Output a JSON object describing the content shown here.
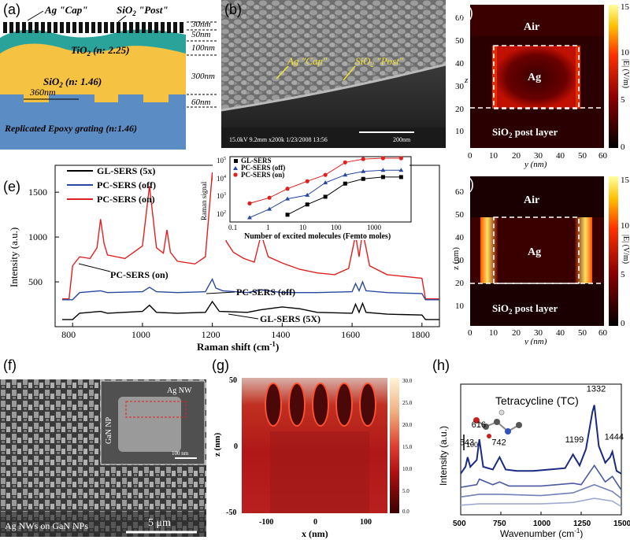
{
  "panels": {
    "a": {
      "label": "(a)",
      "cap": "Ag \"Cap\"",
      "post": "SiO",
      "post_sub": "2",
      "post_suffix": " \"Post\"",
      "tio2": "TiO",
      "tio2_suffix": " (n: 2.25)",
      "sio2": "SiO",
      "sio2_suffix": " (n: 1.46)",
      "period": "360nm",
      "epoxy": "Replicated Epoxy grating (n:1.46)",
      "dims": [
        "30nm",
        "50nm",
        "100nm",
        "300nm",
        "60nm"
      ]
    },
    "b": {
      "label": "(b)",
      "cap": "Ag \"Cap\"",
      "post": "SiO",
      "post_suffix": " \"Post\"",
      "meta": "15.0kV 9.2mm x200k 1/23/2008 13:56",
      "scale": "200nm"
    },
    "c": {
      "label": "(c)",
      "air": "Air",
      "ag": "Ag",
      "post_layer": "SiO",
      "post_layer_suffix": " post layer",
      "ylabel": "z",
      "xlabel": "y (nm)",
      "cbar_label": "|E| (V/m)",
      "xticks": [
        "0",
        "10",
        "20",
        "30",
        "40",
        "50",
        "60"
      ],
      "yticks": [
        "10",
        "20",
        "30",
        "40",
        "50",
        "60"
      ],
      "cbar_ticks": [
        "0",
        "5",
        "10",
        "15"
      ]
    },
    "d": {
      "label": "(d)",
      "air": "Air",
      "ag": "Ag",
      "post_layer": "SiO",
      "post_layer_suffix": " post layer",
      "ylabel": "z (nm)",
      "xlabel": "y (nm)",
      "cbar_label": "|E| (V/m)",
      "xticks": [
        "0",
        "10",
        "20",
        "30",
        "40",
        "50",
        "60"
      ],
      "yticks": [
        "10",
        "20",
        "30",
        "40",
        "50",
        "60"
      ],
      "cbar_ticks": [
        "0",
        "5",
        "10",
        "15"
      ]
    },
    "e": {
      "label": "(e)",
      "legend": [
        "GL-SERS (5x)",
        "PC-SERS (off)",
        "PC-SERS (on)"
      ],
      "ylabel": "Intensity (a.u.)",
      "xlabel": "Raman shift (cm",
      "xlabel_sup": "-1",
      "xlabel_end": ")",
      "xticks": [
        "800",
        "1000",
        "1200",
        "1400",
        "1600",
        "1800"
      ],
      "yticks": [
        "500",
        "1000",
        "1500"
      ],
      "annotations": [
        "PC-SERS (on)",
        "PC-SERS (off)",
        "GL-SERS (5X)"
      ],
      "inset": {
        "legend": [
          "GL-SERS",
          "PC-SERS (off)",
          "PC-SERS (on)"
        ],
        "ylabel": "Raman signal",
        "xlabel": "Number of excited molecules (Femto moles)",
        "xticks": [
          "0.1",
          "1",
          "10",
          "100",
          "1000"
        ],
        "yticks": [
          "10",
          "10",
          "10",
          "10"
        ],
        "ytick_exp": [
          "2",
          "3",
          "4",
          "5"
        ]
      }
    },
    "f": {
      "label": "(f)",
      "inset_ag": "Ag NW",
      "inset_gan": "GaN NP",
      "inset_scale": "100 nm",
      "caption": "Ag NWs on GaN NPs",
      "scale": "5 μm"
    },
    "g": {
      "label": "(g)",
      "ylabel": "z (nm)",
      "xlabel": "x (nm)",
      "xticks": [
        "-100",
        "0",
        "100"
      ],
      "yticks": [
        "50",
        "0",
        "-50"
      ],
      "cbar_ticks": [
        "30.0",
        "25.0",
        "20.0",
        "15.0",
        "10.0",
        "5.0",
        "0.0"
      ]
    },
    "h": {
      "label": "(h)",
      "title": "Tetracycline (TC)",
      "ylabel": "Intensity (a.u.)",
      "xlabel": "Wavenumber (cm",
      "xlabel_sup": "-1",
      "xlabel_end": ")",
      "xticks": [
        "500",
        "750",
        "1000",
        "1250",
        "1500"
      ],
      "scale_bar": "100",
      "peaks": [
        "543",
        "616",
        "742",
        "1199",
        "1332",
        "1444"
      ]
    }
  },
  "chart_data": [
    {
      "type": "line",
      "title": "",
      "xlabel": "Raman shift (cm-1)",
      "ylabel": "Intensity (a.u.)",
      "xlim": [
        750,
        1850
      ],
      "ylim": [
        0,
        1800
      ],
      "series": [
        {
          "name": "PC-SERS (on)",
          "color": "#e02020",
          "x": [
            770,
            790,
            800,
            820,
            850,
            870,
            880,
            890,
            900,
            950,
            1000,
            1020,
            1040,
            1060,
            1070,
            1080,
            1100,
            1150,
            1180,
            1200,
            1210,
            1220,
            1240,
            1260,
            1290,
            1320,
            1340,
            1360,
            1400,
            1450,
            1500,
            1550,
            1590,
            1610,
            1620,
            1630,
            1640,
            1650,
            1700,
            1750,
            1800,
            1810,
            1850
          ],
          "y": [
            310,
            310,
            680,
            780,
            760,
            880,
            1200,
            930,
            800,
            760,
            900,
            1570,
            880,
            820,
            1080,
            830,
            730,
            700,
            780,
            1720,
            1260,
            1290,
            950,
            830,
            760,
            720,
            1030,
            780,
            710,
            640,
            600,
            580,
            650,
            1020,
            780,
            1060,
            880,
            680,
            580,
            560,
            540,
            310,
            310
          ]
        },
        {
          "name": "PC-SERS (off)",
          "color": "#2848a0",
          "x": [
            770,
            800,
            820,
            880,
            900,
            1000,
            1020,
            1040,
            1100,
            1180,
            1200,
            1210,
            1230,
            1300,
            1340,
            1400,
            1500,
            1600,
            1610,
            1620,
            1630,
            1640,
            1700,
            1800,
            1810,
            1850
          ],
          "y": [
            300,
            300,
            380,
            400,
            380,
            390,
            440,
            390,
            380,
            390,
            530,
            430,
            400,
            380,
            410,
            380,
            380,
            390,
            480,
            400,
            500,
            400,
            380,
            370,
            300,
            300
          ]
        },
        {
          "name": "GL-SERS (5x)",
          "color": "#000000",
          "x": [
            770,
            800,
            820,
            880,
            900,
            1000,
            1020,
            1040,
            1100,
            1180,
            1200,
            1220,
            1300,
            1340,
            1400,
            1450,
            1500,
            1600,
            1610,
            1620,
            1630,
            1640,
            1700,
            1800,
            1810,
            1850
          ],
          "y": [
            80,
            80,
            150,
            170,
            150,
            170,
            240,
            160,
            150,
            160,
            280,
            170,
            160,
            190,
            220,
            200,
            160,
            150,
            250,
            160,
            260,
            160,
            140,
            130,
            80,
            80
          ]
        }
      ]
    },
    {
      "type": "scatter",
      "title": "",
      "xlabel": "Number of excited molecules (Femto moles)",
      "ylabel": "Raman signal",
      "xscale": "log",
      "yscale": "log",
      "xlim": [
        0.1,
        5000
      ],
      "ylim": [
        50,
        100000
      ],
      "series": [
        {
          "name": "GL-SERS",
          "color": "#000000",
          "x": [
            3,
            10,
            30,
            100,
            300,
            1000,
            3000
          ],
          "y": [
            100,
            350,
            900,
            4500,
            8000,
            10000,
            10000
          ]
        },
        {
          "name": "PC-SERS (off)",
          "color": "#2848a0",
          "x": [
            0.3,
            1,
            3,
            10,
            30,
            100,
            300,
            1000,
            3000
          ],
          "y": [
            70,
            200,
            700,
            1100,
            5000,
            13000,
            20000,
            23000,
            23000
          ]
        },
        {
          "name": "PC-SERS (on)",
          "color": "#e02020",
          "x": [
            0.3,
            1,
            3,
            10,
            30,
            100,
            300,
            1000,
            3000
          ],
          "y": [
            400,
            800,
            2400,
            6000,
            13000,
            60000,
            90000,
            100000,
            100000
          ]
        }
      ]
    },
    {
      "type": "line",
      "title": "Tetracycline (TC)",
      "xlabel": "Wavenumber (cm-1)",
      "ylabel": "Intensity (a.u.)",
      "xlim": [
        500,
        1500
      ],
      "series": [
        {
          "name": "",
          "color": "#1a2a80",
          "x": [
            500,
            530,
            543,
            560,
            600,
            616,
            640,
            700,
            742,
            780,
            850,
            950,
            1050,
            1150,
            1199,
            1240,
            1280,
            1320,
            1332,
            1360,
            1400,
            1430,
            1444,
            1470,
            1500
          ],
          "y": [
            0.3,
            0.35,
            0.42,
            0.35,
            0.4,
            0.55,
            0.35,
            0.33,
            0.42,
            0.33,
            0.32,
            0.32,
            0.33,
            0.34,
            0.44,
            0.36,
            0.48,
            0.75,
            0.8,
            0.5,
            0.38,
            0.42,
            0.46,
            0.32,
            0.3
          ]
        },
        {
          "name": "",
          "color": "#4a5aa0",
          "x": [
            500,
            600,
            616,
            700,
            742,
            800,
            1000,
            1199,
            1250,
            1332,
            1400,
            1444,
            1500
          ],
          "y": [
            0.2,
            0.22,
            0.26,
            0.22,
            0.24,
            0.21,
            0.21,
            0.23,
            0.22,
            0.36,
            0.24,
            0.28,
            0.18
          ]
        },
        {
          "name": "",
          "color": "#7080b8",
          "x": [
            500,
            616,
            742,
            1000,
            1199,
            1332,
            1444,
            1500
          ],
          "y": [
            0.13,
            0.15,
            0.15,
            0.14,
            0.16,
            0.22,
            0.17,
            0.12
          ]
        },
        {
          "name": "",
          "color": "#a0aad0",
          "x": [
            500,
            616,
            742,
            1000,
            1199,
            1332,
            1444,
            1500
          ],
          "y": [
            0.07,
            0.08,
            0.08,
            0.08,
            0.09,
            0.12,
            0.1,
            0.06
          ]
        }
      ]
    }
  ]
}
